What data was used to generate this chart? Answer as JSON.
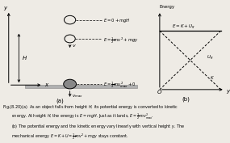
{
  "bg_color": "#eeebe5",
  "title_a": "(a)",
  "title_b": "(b)",
  "label_E_top": "$E = 0 + mgH$",
  "label_E_mid": "$E = \\frac{1}{2}mv^2 + mgy$",
  "label_E_bot": "$E = \\frac{1}{2}mv^2_{max} + 0$",
  "label_y": "$y$",
  "label_H": "$H$",
  "label_x": "$x$",
  "label_v": "$v$",
  "label_vmax": "$v_{max}$",
  "label_energy": "Energy",
  "label_E_const": "$E = K + U_g$",
  "label_Ug": "$U_g$",
  "label_K": "$K$",
  "label_O": "$O$",
  "label_y2": "$y$",
  "cap1": "Fig.(8.20)(a)  As an object falls from height $H$, its potential energy is converted to kinetic",
  "cap2": "energy. At height $H$, the energy is $E = mgH$. Just as it lands, $E = \\frac{1}{2}mv^2_{max}$.",
  "cap3": "(b) The potential energy and the kinetic energy vary linearly with vertical height $y$. The",
  "cap4": "mechanical energy $E = K + U = \\frac{1}{2}mv^2 + mgy$ stays constant."
}
